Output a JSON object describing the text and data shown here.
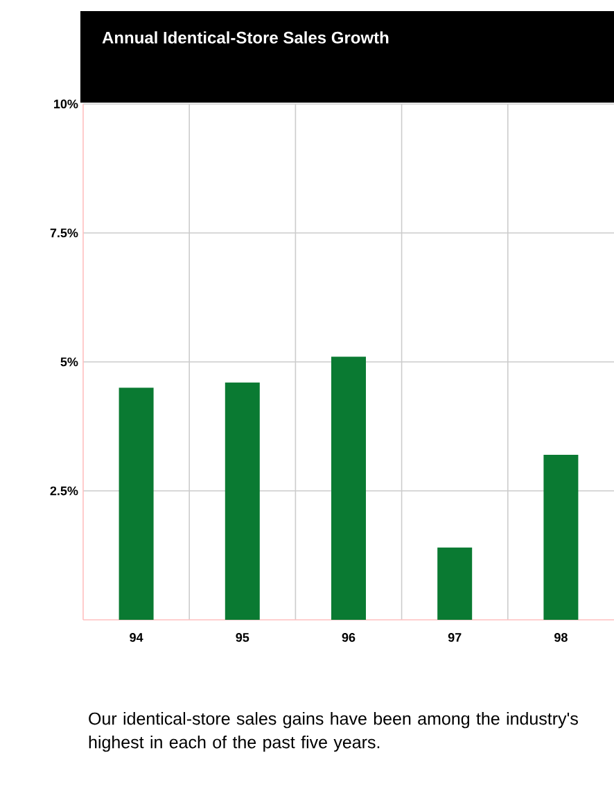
{
  "chart_data": {
    "type": "bar",
    "title": "Annual Identical-Store Sales Growth",
    "categories": [
      "94",
      "95",
      "96",
      "97",
      "98"
    ],
    "values": [
      4.5,
      4.6,
      5.1,
      1.4,
      3.2
    ],
    "color": "#0a7a32",
    "ylim": [
      0,
      10
    ],
    "yticks": [
      {
        "value": 2.5,
        "label": "2.5%"
      },
      {
        "value": 5,
        "label": "5%"
      },
      {
        "value": 7.5,
        "label": "7.5%"
      },
      {
        "value": 10,
        "label": "10%"
      }
    ],
    "grid": true,
    "annotations": [
      "Our identical-store sales gains have been among the industry's highest in each of the past five years."
    ]
  }
}
